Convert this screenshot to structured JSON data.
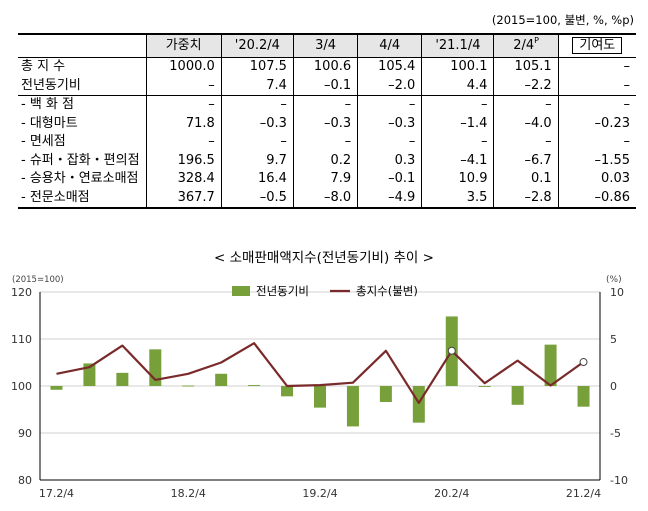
{
  "unit_note": "(2015=100, 불변, %, %p)",
  "table": {
    "headers": [
      "가중치",
      "'20.2/4",
      "3/4",
      "4/4",
      "'21.1/4",
      "2/4",
      "기여도"
    ],
    "header_sup": "P",
    "rows": [
      {
        "label": "총 지 수",
        "values": [
          "1000.0",
          "107.5",
          "100.6",
          "105.4",
          "100.1",
          "105.1",
          "–"
        ]
      },
      {
        "label": "전년동기비",
        "values": [
          "–",
          "7.4",
          "–0.1",
          "–2.0",
          "4.4",
          "–2.2",
          "–"
        ]
      },
      {
        "label": "- 백 화 점",
        "values": [
          "–",
          "–",
          "–",
          "–",
          "–",
          "–",
          "–"
        ]
      },
      {
        "label": "- 대형마트",
        "values": [
          "71.8",
          "–0.3",
          "–0.3",
          "–0.3",
          "–1.4",
          "–4.0",
          "–0.23"
        ]
      },
      {
        "label": "- 면세점",
        "values": [
          "–",
          "–",
          "–",
          "–",
          "–",
          "–",
          "–"
        ]
      },
      {
        "label": "- 슈퍼・잡화・편의점",
        "values": [
          "196.5",
          "9.7",
          "0.2",
          "0.3",
          "–4.1",
          "–6.7",
          "–1.55"
        ]
      },
      {
        "label": "- 승용차・연료소매점",
        "values": [
          "328.4",
          "16.4",
          "7.9",
          "–0.1",
          "10.9",
          "0.1",
          "0.03"
        ]
      },
      {
        "label": "- 전문소매점",
        "values": [
          "367.7",
          "–0.5",
          "–8.0",
          "–4.9",
          "3.5",
          "–2.8",
          "–0.86"
        ]
      }
    ]
  },
  "chart_title": "< 소매판매액지수(전년동기비) 추이 >",
  "chart_data": {
    "type": "bar+line",
    "left_axis_label": "(2015=100)",
    "right_axis_label": "(%)",
    "left_ticks": [
      "120",
      "110",
      "100",
      "90",
      "80"
    ],
    "right_ticks": [
      "10",
      "5",
      "0",
      "-5",
      "-10"
    ],
    "left_ylim": [
      80,
      120
    ],
    "right_ylim": [
      -10,
      10
    ],
    "x_tick_labels": [
      "17.2/4",
      "18.2/4",
      "19.2/4",
      "20.2/4",
      "21.2/4"
    ],
    "x_tick_indices": [
      0,
      4,
      8,
      12,
      16
    ],
    "categories": [
      "17.2/4",
      "17.3/4",
      "17.4/4",
      "18.1/4",
      "18.2/4",
      "18.3/4",
      "18.4/4",
      "19.1/4",
      "19.2/4",
      "19.3/4",
      "19.4/4",
      "20.1/4",
      "20.2/4",
      "20.3/4",
      "20.4/4",
      "21.1/4",
      "21.2/4"
    ],
    "series": [
      {
        "name": "전년동기비",
        "kind": "bar",
        "axis": "right",
        "color": "#77a03a",
        "values": [
          -0.4,
          2.4,
          1.4,
          3.9,
          0.0,
          1.3,
          0.1,
          -1.1,
          -2.3,
          -4.3,
          -1.7,
          -3.9,
          7.4,
          -0.1,
          -2.0,
          4.4,
          -2.2
        ]
      },
      {
        "name": "총지수(불변)",
        "kind": "line",
        "axis": "left",
        "color": "#7a2a2a",
        "values": [
          102.6,
          104.0,
          108.6,
          101.3,
          102.6,
          105.0,
          109.1,
          100.0,
          100.2,
          100.7,
          107.5,
          96.4,
          107.5,
          100.6,
          105.4,
          100.1,
          105.1
        ],
        "marker_indices": [
          12,
          16
        ]
      }
    ],
    "legend_position": "top"
  }
}
